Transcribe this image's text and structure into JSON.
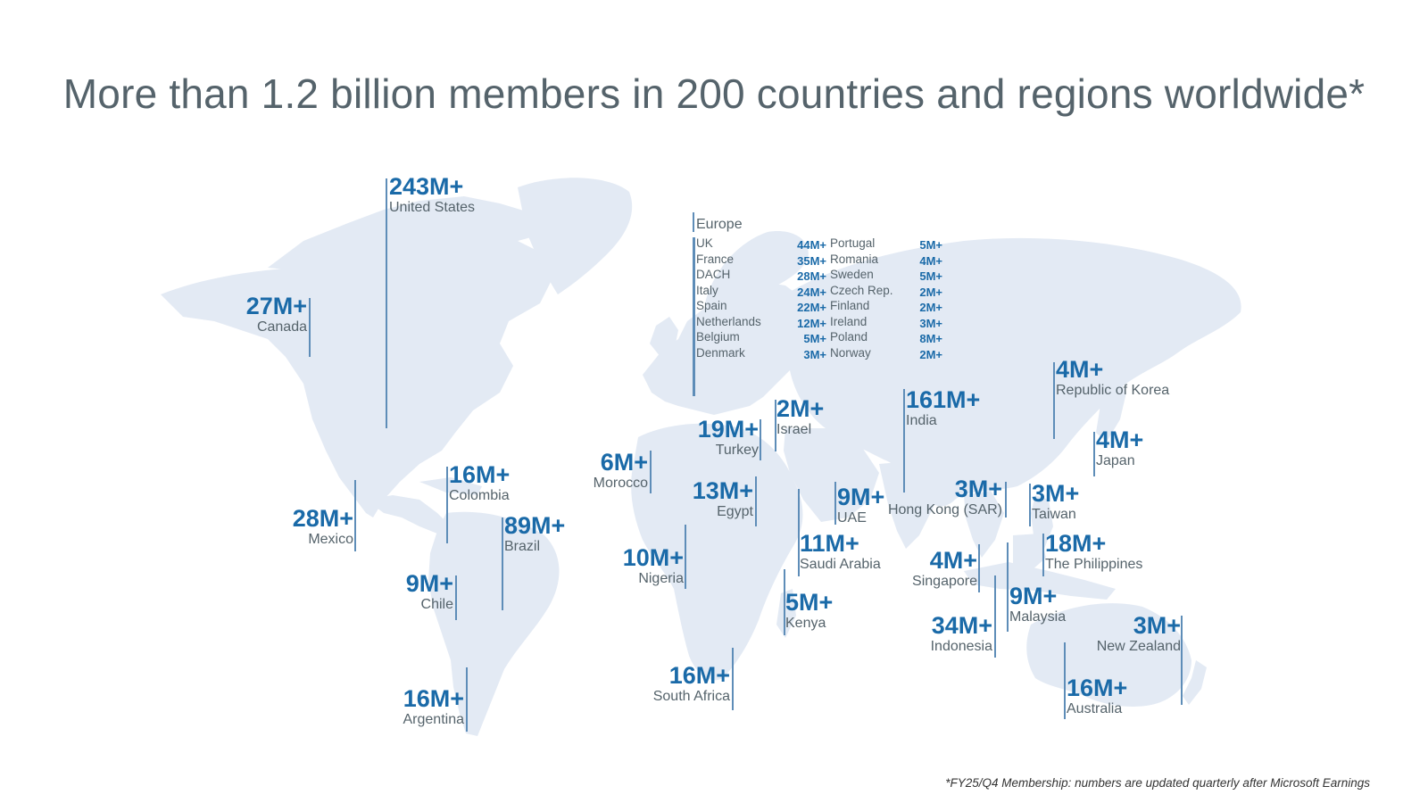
{
  "title": "More than 1.2 billion members in 200 countries and regions worldwide*",
  "footnote": "*FY25/Q4 Membership: numbers are updated quarterly after Microsoft Earnings",
  "colors": {
    "value": "#1a6aa8",
    "label": "#55636b",
    "land": "#e3eaf4",
    "line": "#5e8db8"
  },
  "countries": {
    "united_states": {
      "value": "243M+",
      "name": "United States"
    },
    "canada": {
      "value": "27M+",
      "name": "Canada"
    },
    "mexico": {
      "value": "28M+",
      "name": "Mexico"
    },
    "colombia": {
      "value": "16M+",
      "name": "Colombia"
    },
    "brazil": {
      "value": "89M+",
      "name": "Brazil"
    },
    "chile": {
      "value": "9M+",
      "name": "Chile"
    },
    "argentina": {
      "value": "16M+",
      "name": "Argentina"
    },
    "morocco": {
      "value": "6M+",
      "name": "Morocco"
    },
    "turkey": {
      "value": "19M+",
      "name": "Turkey"
    },
    "israel": {
      "value": "2M+",
      "name": "Israel"
    },
    "egypt": {
      "value": "13M+",
      "name": "Egypt"
    },
    "nigeria": {
      "value": "10M+",
      "name": "Nigeria"
    },
    "south_africa": {
      "value": "16M+",
      "name": "South Africa"
    },
    "uae": {
      "value": "9M+",
      "name": "UAE"
    },
    "saudi_arabia": {
      "value": "11M+",
      "name": "Saudi Arabia"
    },
    "kenya": {
      "value": "5M+",
      "name": "Kenya"
    },
    "india": {
      "value": "161M+",
      "name": "India"
    },
    "hong_kong": {
      "value": "3M+",
      "name": "Hong Kong (SAR)"
    },
    "singapore": {
      "value": "4M+",
      "name": "Singapore"
    },
    "indonesia": {
      "value": "34M+",
      "name": "Indonesia"
    },
    "malaysia": {
      "value": "9M+",
      "name": "Malaysia"
    },
    "korea": {
      "value": "4M+",
      "name": "Republic of Korea"
    },
    "japan": {
      "value": "4M+",
      "name": "Japan"
    },
    "taiwan": {
      "value": "3M+",
      "name": "Taiwan"
    },
    "philippines": {
      "value": "18M+",
      "name": "The Philippines"
    },
    "new_zealand": {
      "value": "3M+",
      "name": "New Zealand"
    },
    "australia": {
      "value": "16M+",
      "name": "Australia"
    }
  },
  "europe": {
    "heading": "Europe",
    "col1": [
      {
        "name": "UK",
        "value": "44M+"
      },
      {
        "name": "France",
        "value": "35M+"
      },
      {
        "name": "DACH",
        "value": "28M+"
      },
      {
        "name": "Italy",
        "value": "24M+"
      },
      {
        "name": "Spain",
        "value": "22M+"
      },
      {
        "name": "Netherlands",
        "value": "12M+"
      },
      {
        "name": "Belgium",
        "value": "5M+"
      },
      {
        "name": "Denmark",
        "value": "3M+"
      }
    ],
    "col2": [
      {
        "name": "Portugal",
        "value": "5M+"
      },
      {
        "name": "Romania",
        "value": "4M+"
      },
      {
        "name": "Sweden",
        "value": "5M+"
      },
      {
        "name": "Czech Rep.",
        "value": "2M+"
      },
      {
        "name": "Finland",
        "value": "2M+"
      },
      {
        "name": "Ireland",
        "value": "3M+"
      },
      {
        "name": "Poland",
        "value": "8M+"
      },
      {
        "name": "Norway",
        "value": "2M+"
      }
    ]
  }
}
